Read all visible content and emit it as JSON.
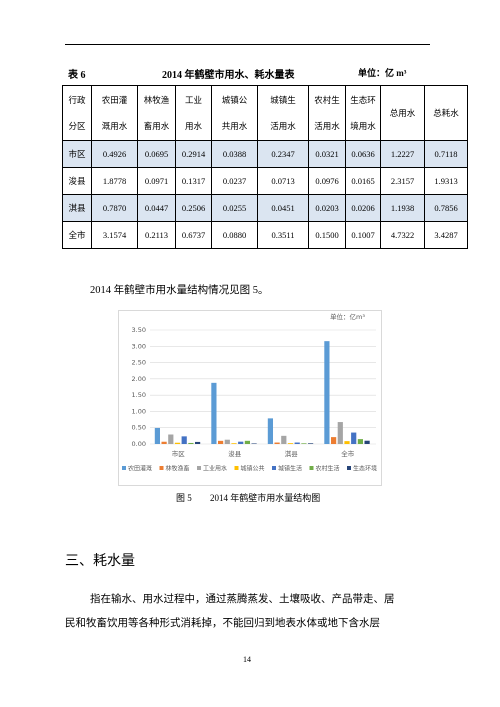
{
  "table_caption": {
    "number": "表 6",
    "title": "2014 年鹤壁市用水、耗水量表",
    "unit": "单位：亿 m³"
  },
  "table": {
    "header": [
      [
        "行政",
        "分区"
      ],
      [
        "农田灌",
        "溉用水"
      ],
      [
        "林牧渔",
        "畜用水"
      ],
      [
        "工业",
        "用水"
      ],
      [
        "城镇公",
        "共用水"
      ],
      [
        "城镇生",
        "活用水"
      ],
      [
        "农村生",
        "活用水"
      ],
      [
        "生态环",
        "境用水"
      ],
      [
        "总用水"
      ],
      [
        "总耗水"
      ]
    ],
    "rows": [
      [
        "市区",
        "0.4926",
        "0.0695",
        "0.2914",
        "0.0388",
        "0.2347",
        "0.0321",
        "0.0636",
        "1.2227",
        "0.7118"
      ],
      [
        "浚县",
        "1.8778",
        "0.0971",
        "0.1317",
        "0.0237",
        "0.0713",
        "0.0976",
        "0.0165",
        "2.3157",
        "1.9313"
      ],
      [
        "淇县",
        "0.7870",
        "0.0447",
        "0.2506",
        "0.0255",
        "0.0451",
        "0.0203",
        "0.0206",
        "1.1938",
        "0.7856"
      ],
      [
        "全市",
        "3.1574",
        "0.2113",
        "0.6737",
        "0.0880",
        "0.3511",
        "0.1500",
        "0.1007",
        "4.7322",
        "3.4287"
      ]
    ]
  },
  "intro": "2014 年鹤壁市用水量结构情况见图 5。",
  "chart_data": {
    "type": "bar",
    "unit_label": "单位：亿m³",
    "categories": [
      "市区",
      "浚县",
      "淇县",
      "全市"
    ],
    "series": [
      {
        "name": "农田灌溉",
        "color": "#5b9bd5",
        "values": [
          0.4926,
          1.8778,
          0.787,
          3.1574
        ]
      },
      {
        "name": "林牧渔畜",
        "color": "#ed7d31",
        "values": [
          0.0695,
          0.0971,
          0.0447,
          0.2113
        ]
      },
      {
        "name": "工业用水",
        "color": "#a5a5a5",
        "values": [
          0.2914,
          0.1317,
          0.2506,
          0.6737
        ]
      },
      {
        "name": "城镇公共",
        "color": "#ffc000",
        "values": [
          0.0388,
          0.0237,
          0.0255,
          0.088
        ]
      },
      {
        "name": "城镇生活",
        "color": "#4472c4",
        "values": [
          0.2347,
          0.0713,
          0.0451,
          0.3511
        ]
      },
      {
        "name": "农村生活",
        "color": "#70ad47",
        "values": [
          0.0321,
          0.0976,
          0.0203,
          0.15
        ]
      },
      {
        "name": "生态环境",
        "color": "#264478",
        "values": [
          0.0636,
          0.0165,
          0.0206,
          0.1007
        ]
      }
    ],
    "ylim": [
      0,
      3.5
    ],
    "yticks": [
      {
        "value": 0,
        "label": "0.00"
      },
      {
        "value": 0.5,
        "label": "0.50"
      },
      {
        "value": 1,
        "label": "1.00"
      },
      {
        "value": 1.5,
        "label": "1.50"
      },
      {
        "value": 2,
        "label": "2.00"
      },
      {
        "value": 2.5,
        "label": "2.50"
      },
      {
        "value": 3,
        "label": "3.00"
      },
      {
        "value": 3.5,
        "label": "3.50"
      }
    ],
    "grid": true,
    "legend": "bottom"
  },
  "figure_caption": {
    "number": "图 5",
    "title": "2014 年鹤壁市用水量结构图"
  },
  "section_heading": "三、耗水量",
  "paragraph": [
    "指在输水、用水过程中，通过蒸腾蒸发、土壤吸收、产品带走、居",
    "民和牧畜饮用等各种形式消耗掉，不能回归到地表水体或地下含水层"
  ],
  "page_number": "14"
}
